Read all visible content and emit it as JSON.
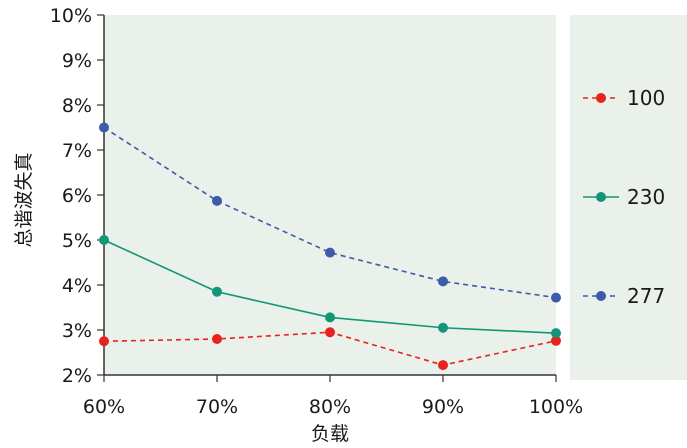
{
  "chart_data": {
    "type": "line",
    "xlabel": "负载",
    "ylabel": "总谐波失真",
    "categories": [
      "60%",
      "70%",
      "80%",
      "90%",
      "100%"
    ],
    "ylim": [
      2,
      10
    ],
    "yticks": [
      "2%",
      "3%",
      "4%",
      "5%",
      "6%",
      "7%",
      "8%",
      "9%",
      "10%"
    ],
    "grid": false,
    "legend_position": "right",
    "background_color": "#eaf0ea",
    "series": [
      {
        "name": "100",
        "values": [
          2.75,
          2.8,
          2.95,
          2.22,
          2.76
        ],
        "color": "#e8221c",
        "style": "dashed"
      },
      {
        "name": "230",
        "values": [
          5.0,
          3.85,
          3.28,
          3.05,
          2.93
        ],
        "color": "#13957a",
        "style": "solid"
      },
      {
        "name": "277",
        "values": [
          7.5,
          5.87,
          4.72,
          4.08,
          3.72
        ],
        "color": "#3d5ba8",
        "style": "dashed"
      }
    ]
  }
}
